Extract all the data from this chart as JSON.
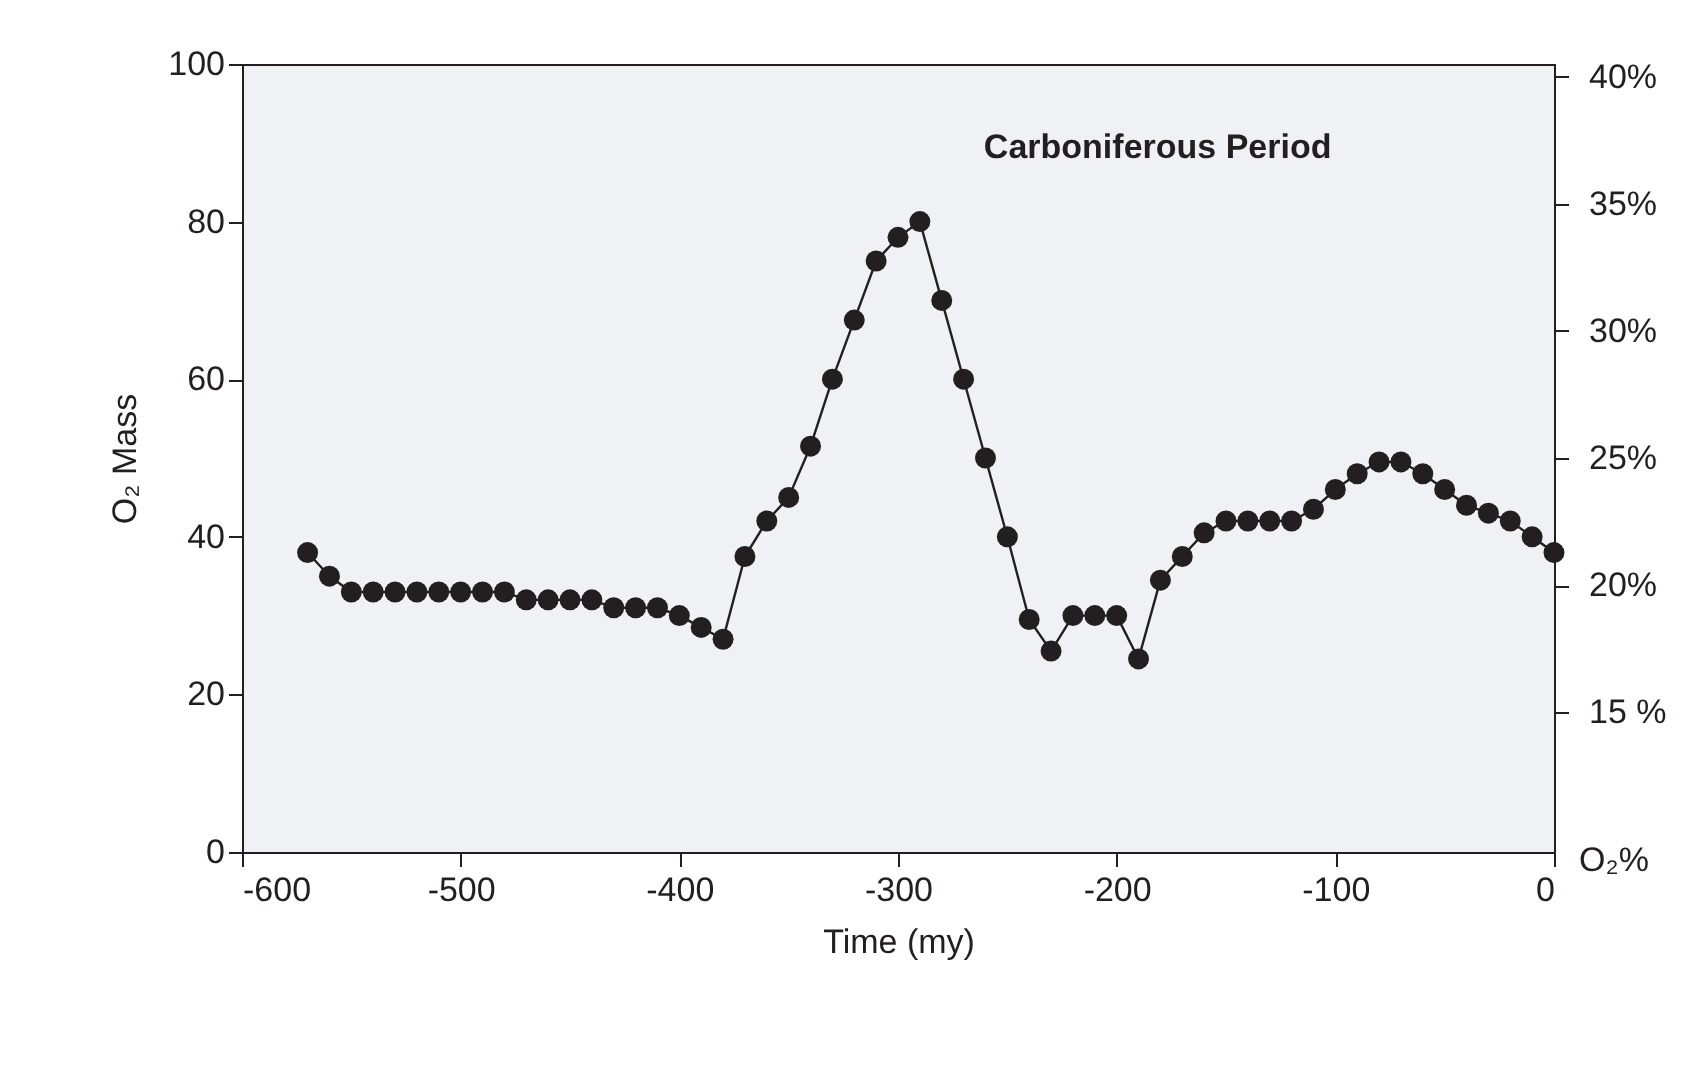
{
  "chart_data": {
    "type": "line",
    "xlabel": "Time (my)",
    "ylabel": "O₂ Mass",
    "marker": "circle",
    "x": [
      -570,
      -560,
      -550,
      -540,
      -530,
      -520,
      -510,
      -500,
      -490,
      -480,
      -470,
      -460,
      -450,
      -440,
      -430,
      -420,
      -410,
      -400,
      -390,
      -380,
      -370,
      -360,
      -350,
      -340,
      -330,
      -320,
      -310,
      -300,
      -290,
      -280,
      -270,
      -260,
      -250,
      -240,
      -230,
      -220,
      -210,
      -200,
      -190,
      -180,
      -170,
      -160,
      -150,
      -140,
      -130,
      -120,
      -110,
      -100,
      -90,
      -80,
      -70,
      -60,
      -50,
      -40,
      -30,
      -20,
      -10,
      0
    ],
    "series": [
      {
        "color": "#231f20",
        "values": [
          38,
          35,
          33,
          33,
          33,
          33,
          33,
          33,
          33,
          33,
          32,
          32,
          32,
          32,
          31,
          31,
          31,
          30,
          28.5,
          27,
          37.5,
          42,
          45,
          51.5,
          60,
          67.5,
          75,
          78,
          80,
          70,
          60,
          50,
          40,
          29.5,
          25.5,
          30,
          30,
          30,
          24.5,
          34.5,
          37.5,
          40.5,
          42,
          42,
          42,
          42,
          43.5,
          46,
          48,
          49.5,
          49.5,
          48,
          46,
          44,
          43,
          42,
          40,
          38
        ]
      }
    ],
    "xlim": [
      -600,
      0
    ],
    "xticks": [
      -600,
      -500,
      -400,
      -300,
      -200,
      -100,
      0
    ],
    "ylim": [
      0,
      100
    ],
    "yticks": [
      0,
      20,
      40,
      60,
      80,
      100
    ],
    "y2label": "O₂%",
    "y2lim": [
      9.5,
      40.5
    ],
    "y2ticks": [
      {
        "value": 15,
        "label": "15 %"
      },
      {
        "value": 20,
        "label": "20%"
      },
      {
        "value": 25,
        "label": "25%"
      },
      {
        "value": 30,
        "label": "30%"
      },
      {
        "value": 35,
        "label": "35%"
      },
      {
        "value": 40,
        "label": "40%"
      }
    ],
    "annotations": [
      {
        "text": "Carboniferous Period",
        "x": -290,
        "y": 80
      }
    ],
    "grid": false,
    "legend": false
  }
}
